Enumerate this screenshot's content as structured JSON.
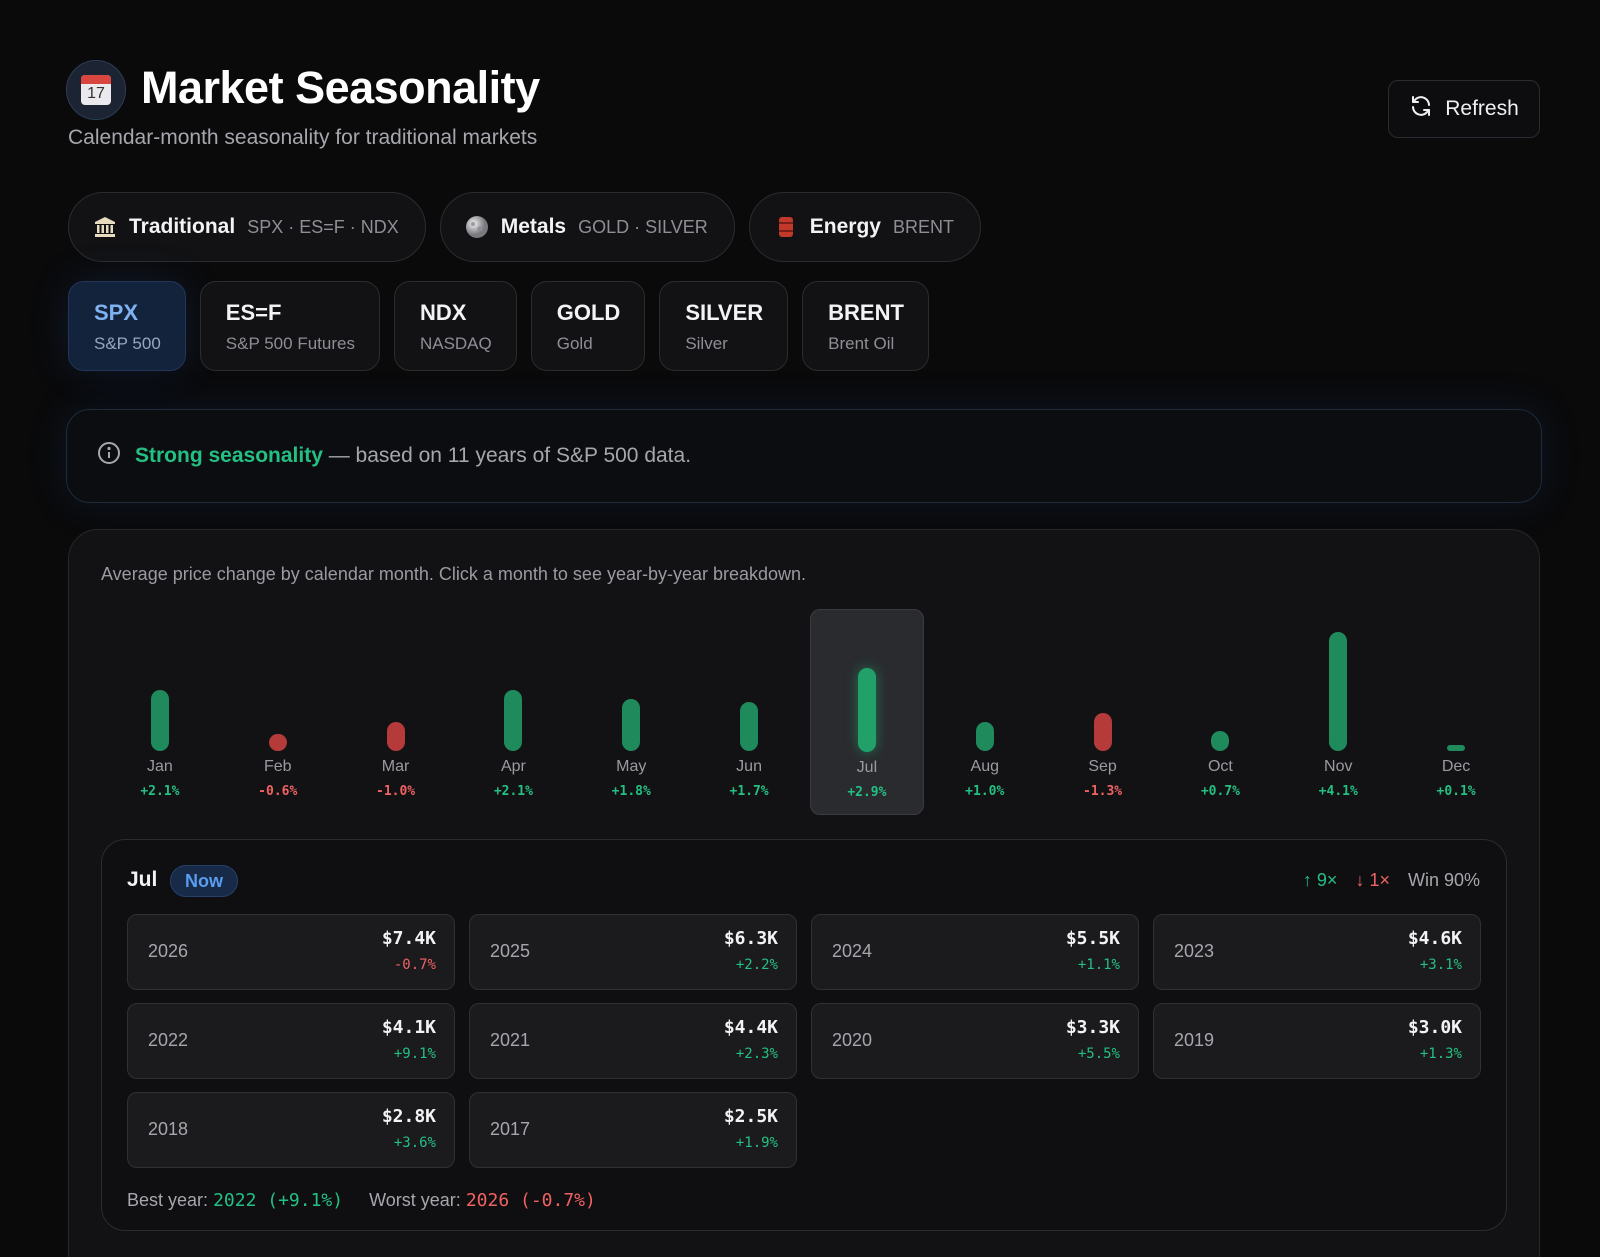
{
  "header": {
    "title": "Market Seasonality",
    "subtitle": "Calendar-month seasonality for traditional markets",
    "calendar_day": "17",
    "refresh_label": "Refresh",
    "icons": {
      "title": "calendar-icon",
      "refresh": "refresh-icon"
    }
  },
  "groups": [
    {
      "label": "Traditional",
      "symbols": "SPX · ES=F · NDX",
      "icon": "bank-icon"
    },
    {
      "label": "Metals",
      "symbols": "GOLD · SILVER",
      "icon": "moon-icon"
    },
    {
      "label": "Energy",
      "symbols": "BRENT",
      "icon": "oil-barrel-icon"
    }
  ],
  "tickers": [
    {
      "symbol": "SPX",
      "name": "S&P 500",
      "active": true
    },
    {
      "symbol": "ES=F",
      "name": "S&P 500 Futures",
      "active": false
    },
    {
      "symbol": "NDX",
      "name": "NASDAQ",
      "active": false
    },
    {
      "symbol": "GOLD",
      "name": "Gold",
      "active": false
    },
    {
      "symbol": "SILVER",
      "name": "Silver",
      "active": false
    },
    {
      "symbol": "BRENT",
      "name": "Brent Oil",
      "active": false
    }
  ],
  "info": {
    "strong": "Strong seasonality",
    "rest": " — based on 11 years of S&P 500 data."
  },
  "chart_card": {
    "description": "Average price change by calendar month. Click a month to see year-by-year breakdown."
  },
  "chart_data": {
    "type": "bar",
    "categories": [
      "Jan",
      "Feb",
      "Mar",
      "Apr",
      "May",
      "Jun",
      "Jul",
      "Aug",
      "Sep",
      "Oct",
      "Nov",
      "Dec"
    ],
    "values": [
      2.1,
      -0.6,
      -1.0,
      2.1,
      1.8,
      1.7,
      2.9,
      1.0,
      -1.3,
      0.7,
      4.1,
      0.1
    ],
    "value_labels": [
      "+2.1%",
      "-0.6%",
      "-1.0%",
      "+2.1%",
      "+1.8%",
      "+1.7%",
      "+2.9%",
      "+1.0%",
      "-1.3%",
      "+0.7%",
      "+4.1%",
      "+0.1%"
    ],
    "selected": "Jul",
    "colors": {
      "positive": "#1f8a5b",
      "negative": "#b53a3a"
    }
  },
  "detail": {
    "month": "Jul",
    "badge": "Now",
    "up_count": "↑ 9×",
    "down_count": "↓ 1×",
    "win_rate": "Win 90%",
    "years": [
      {
        "year": "2026",
        "price": "$7.4K",
        "change": "-0.7%"
      },
      {
        "year": "2025",
        "price": "$6.3K",
        "change": "+2.2%"
      },
      {
        "year": "2024",
        "price": "$5.5K",
        "change": "+1.1%"
      },
      {
        "year": "2023",
        "price": "$4.6K",
        "change": "+3.1%"
      },
      {
        "year": "2022",
        "price": "$4.1K",
        "change": "+9.1%"
      },
      {
        "year": "2021",
        "price": "$4.4K",
        "change": "+2.3%"
      },
      {
        "year": "2020",
        "price": "$3.3K",
        "change": "+5.5%"
      },
      {
        "year": "2019",
        "price": "$3.0K",
        "change": "+1.3%"
      },
      {
        "year": "2018",
        "price": "$2.8K",
        "change": "+3.6%"
      },
      {
        "year": "2017",
        "price": "$2.5K",
        "change": "+1.9%"
      }
    ],
    "best_label": "Best year:",
    "best_value": "2022 (+9.1%)",
    "worst_label": "Worst year:",
    "worst_value": "2026 (-0.7%)"
  }
}
